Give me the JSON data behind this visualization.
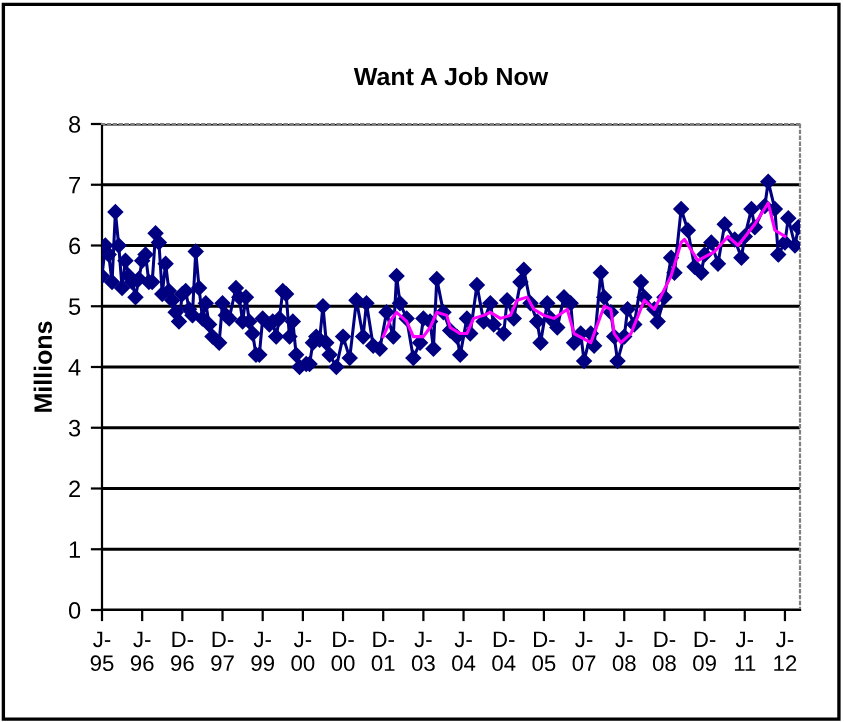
{
  "chart_data": {
    "type": "line",
    "title": "Want A Job Now",
    "ylabel": "Millions",
    "ylim": [
      0,
      8
    ],
    "yticks": [
      0,
      1,
      2,
      3,
      4,
      5,
      6,
      7,
      8
    ],
    "categories": [
      "J-\n95",
      null,
      null,
      null,
      null,
      null,
      null,
      null,
      null,
      null,
      null,
      null,
      "J-\n96",
      null,
      null,
      null,
      null,
      null,
      null,
      null,
      null,
      null,
      null,
      null,
      "D-\n96",
      null,
      null,
      null,
      null,
      null,
      null,
      null,
      null,
      null,
      null,
      null,
      "D-\n97",
      null,
      null,
      null,
      null,
      null,
      null,
      null,
      null,
      null,
      null,
      null,
      "J-\n99",
      null,
      null,
      null,
      null,
      null,
      null,
      null,
      null,
      null,
      null,
      null,
      "J-\n00",
      null,
      null,
      null,
      null,
      null,
      null,
      null,
      null,
      null,
      null,
      null,
      "D-\n00",
      null,
      null,
      null,
      null,
      null,
      null,
      null,
      null,
      null,
      null,
      null,
      "D-\n01",
      null,
      null,
      null,
      null,
      null,
      null,
      null,
      null,
      null,
      null,
      null,
      "J-\n03",
      null,
      null,
      null,
      null,
      null,
      null,
      null,
      null,
      null,
      null,
      null,
      "J-\n04",
      null,
      null,
      null,
      null,
      null,
      null,
      null,
      null,
      null,
      null,
      null,
      "D-\n04",
      null,
      null,
      null,
      null,
      null,
      null,
      null,
      null,
      null,
      null,
      null,
      "D-\n05",
      null,
      null,
      null,
      null,
      null,
      null,
      null,
      null,
      null,
      null,
      null,
      "J-\n07",
      null,
      null,
      null,
      null,
      null,
      null,
      null,
      null,
      null,
      null,
      null,
      "J-\n08",
      null,
      null,
      null,
      null,
      null,
      null,
      null,
      null,
      null,
      null,
      null,
      "D-\n08",
      null,
      null,
      null,
      null,
      null,
      null,
      null,
      null,
      null,
      null,
      null,
      "D-\n09",
      null,
      null,
      null,
      null,
      null,
      null,
      null,
      null,
      null,
      null,
      null,
      "J-\n11",
      null,
      null,
      null,
      null,
      null,
      null,
      null,
      null,
      null,
      null,
      null,
      "J-\n12",
      null,
      null,
      null,
      null
    ],
    "grid": "y",
    "legend": false,
    "series": [
      {
        "color": "#000080",
        "marker": "diamond",
        "line_style": "solid",
        "values": [
          5.5,
          6.0,
          5.85,
          5.4,
          6.55,
          6.0,
          5.3,
          5.75,
          5.5,
          5.4,
          5.15,
          5.45,
          5.75,
          5.85,
          5.4,
          5.4,
          6.2,
          6.05,
          5.2,
          5.7,
          5.25,
          5.1,
          4.9,
          4.75,
          5.2,
          5.25,
          4.95,
          4.85,
          5.9,
          5.3,
          4.8,
          5.05,
          4.7,
          4.5,
          null,
          4.4,
          5.05,
          4.85,
          4.8,
          null,
          5.3,
          5.15,
          4.75,
          5.15,
          4.75,
          4.55,
          4.2,
          4.2,
          4.8,
          null,
          4.7,
          4.75,
          4.5,
          4.8,
          5.25,
          5.2,
          4.5,
          4.75,
          4.2,
          4.0,
          null,
          4.05,
          4.05,
          4.4,
          4.5,
          4.45,
          5.0,
          4.4,
          4.2,
          null,
          4.0,
          null,
          4.5,
          null,
          4.15,
          null,
          5.1,
          null,
          4.5,
          5.05,
          null,
          4.35,
          null,
          4.3,
          null,
          4.9,
          null,
          4.5,
          5.5,
          5.05,
          null,
          4.8,
          null,
          4.15,
          null,
          4.4,
          4.8,
          null,
          4.75,
          4.3,
          5.45,
          null,
          4.9,
          null,
          4.6,
          null,
          4.5,
          4.2,
          null,
          4.8,
          4.55,
          null,
          5.35,
          null,
          4.75,
          null,
          5.05,
          4.7,
          null,
          null,
          4.55,
          5.1,
          null,
          4.8,
          null,
          5.4,
          5.6,
          null,
          5.05,
          null,
          4.75,
          4.4,
          null,
          5.05,
          4.8,
          null,
          4.65,
          null,
          5.15,
          null,
          5.05,
          4.4,
          null,
          4.55,
          4.1,
          null,
          4.55,
          4.35,
          null,
          5.55,
          5.15,
          null,
          4.9,
          4.5,
          4.1,
          null,
          4.5,
          4.95,
          null,
          4.7,
          null,
          5.4,
          5.15,
          null,
          null,
          4.95,
          4.75,
          null,
          5.15,
          null,
          5.8,
          5.55,
          null,
          6.6,
          null,
          6.25,
          null,
          5.65,
          null,
          5.55,
          5.85,
          null,
          6.05,
          null,
          5.7,
          null,
          6.35,
          null,
          null,
          6.1,
          null,
          5.8,
          6.15,
          null,
          6.6,
          6.3,
          null,
          null,
          6.65,
          7.05,
          null,
          6.6,
          5.85,
          null,
          6.05,
          6.45,
          null,
          6.0,
          6.3
        ]
      },
      {
        "color": "#ff00ff",
        "marker": "none",
        "line_style": "solid",
        "values": [
          null,
          null,
          null,
          null,
          null,
          null,
          null,
          null,
          null,
          null,
          null,
          null,
          null,
          null,
          null,
          null,
          null,
          null,
          null,
          null,
          null,
          null,
          null,
          null,
          null,
          null,
          null,
          null,
          null,
          null,
          null,
          null,
          null,
          null,
          null,
          null,
          null,
          null,
          null,
          null,
          null,
          null,
          null,
          null,
          null,
          null,
          null,
          null,
          null,
          null,
          null,
          null,
          null,
          null,
          null,
          null,
          null,
          null,
          null,
          null,
          null,
          null,
          null,
          null,
          null,
          null,
          null,
          null,
          null,
          null,
          null,
          null,
          null,
          null,
          null,
          null,
          null,
          null,
          null,
          null,
          null,
          null,
          null,
          null,
          4.5,
          null,
          4.75,
          null,
          4.9,
          null,
          null,
          4.75,
          null,
          4.5,
          null,
          null,
          4.5,
          null,
          4.65,
          null,
          4.9,
          null,
          null,
          4.85,
          4.65,
          null,
          null,
          4.55,
          null,
          4.55,
          null,
          4.8,
          null,
          null,
          4.85,
          null,
          4.9,
          null,
          null,
          4.8,
          null,
          null,
          4.85,
          null,
          5.1,
          null,
          null,
          5.15,
          null,
          4.95,
          null,
          null,
          4.85,
          null,
          null,
          4.8,
          null,
          null,
          null,
          4.95,
          null,
          4.55,
          null,
          null,
          null,
          null,
          4.4,
          null,
          null,
          null,
          5.0,
          null,
          4.95,
          4.55,
          null,
          4.4,
          null,
          null,
          4.55,
          null,
          null,
          null,
          5.1,
          null,
          null,
          4.95,
          null,
          null,
          null,
          null,
          5.5,
          null,
          null,
          6.05,
          6.1,
          null,
          null,
          null,
          5.75,
          null,
          null,
          null,
          null,
          5.9,
          null,
          null,
          null,
          6.15,
          null,
          null,
          6.0,
          null,
          null,
          null,
          null,
          6.35,
          null,
          null,
          null,
          6.7,
          null,
          6.25,
          null,
          null,
          6.15,
          null,
          null,
          null,
          null
        ]
      }
    ]
  }
}
